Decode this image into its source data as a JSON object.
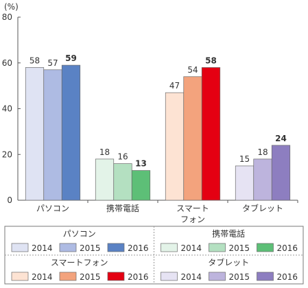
{
  "chart_data": {
    "type": "bar",
    "unit_label": "(%)",
    "ylim": [
      0,
      80
    ],
    "yticks": [
      0,
      20,
      40,
      60,
      80
    ],
    "categories": [
      "パソコン",
      "携帯電話",
      "スマート\nフォン",
      "タブレット"
    ],
    "years": [
      "2014",
      "2015",
      "2016"
    ],
    "values": [
      [
        58,
        57,
        59
      ],
      [
        18,
        16,
        13
      ],
      [
        47,
        54,
        58
      ],
      [
        15,
        18,
        24
      ]
    ],
    "bold_last_year": true,
    "colors": [
      [
        "#dfe3f3",
        "#aebbe3",
        "#5a82c4"
      ],
      [
        "#e3f3e8",
        "#b4e0c1",
        "#5dbf77"
      ],
      [
        "#fde3d3",
        "#f3a37d",
        "#e40012"
      ],
      [
        "#e6e3f3",
        "#bdb4dd",
        "#8d7ec0"
      ]
    ],
    "legend": {
      "placement": "bottom",
      "groups": [
        {
          "title": "パソコン",
          "items": [
            "2014",
            "2015",
            "2016"
          ]
        },
        {
          "title": "携帯電話",
          "items": [
            "2014",
            "2015",
            "2016"
          ]
        },
        {
          "title": "スマートフォン",
          "items": [
            "2014",
            "2015",
            "2016"
          ]
        },
        {
          "title": "タブレット",
          "items": [
            "2014",
            "2015",
            "2016"
          ]
        }
      ]
    }
  }
}
